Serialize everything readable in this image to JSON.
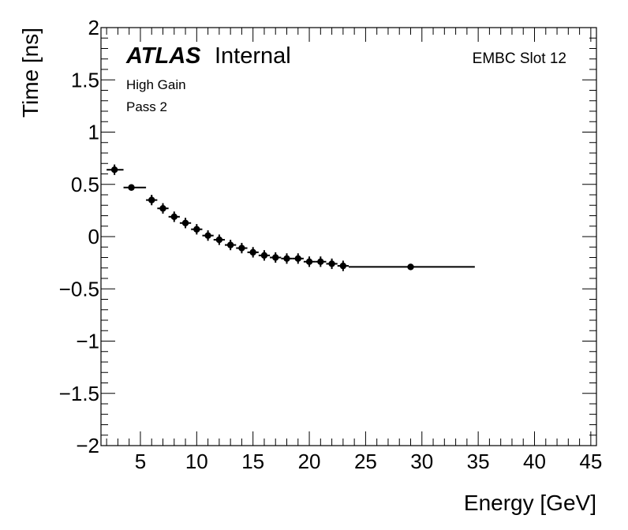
{
  "chart_data": {
    "type": "scatter",
    "xlabel": "Energy [GeV]",
    "ylabel": "Time [ns]",
    "xlim": [
      1.5,
      45.5
    ],
    "ylim": [
      -2,
      2
    ],
    "x_major_ticks": [
      5,
      10,
      15,
      20,
      25,
      30,
      35,
      40,
      45
    ],
    "x_tick_labels": [
      "5",
      "10",
      "15",
      "20",
      "25",
      "30",
      "35",
      "40",
      "45"
    ],
    "y_major_ticks": [
      -2,
      -1.5,
      -1,
      -0.5,
      0,
      0.5,
      1,
      1.5,
      2
    ],
    "y_tick_labels": [
      "−2",
      "−1.5",
      "−1",
      "−0.5",
      "0",
      "0.5",
      "1",
      "1.5",
      "2"
    ],
    "series": [
      {
        "name": "EMBC Slot 12",
        "points": [
          {
            "x": 2.7,
            "y": 0.64,
            "xlo": 2.0,
            "xhi": 3.5,
            "yerr": 0.05
          },
          {
            "x": 4.2,
            "y": 0.47,
            "xlo": 3.5,
            "xhi": 5.5,
            "yerr": 0.03
          },
          {
            "x": 6.0,
            "y": 0.35,
            "xlo": 5.5,
            "xhi": 6.5,
            "yerr": 0.05
          },
          {
            "x": 7.0,
            "y": 0.27,
            "xlo": 6.5,
            "xhi": 7.5,
            "yerr": 0.05
          },
          {
            "x": 8.0,
            "y": 0.19,
            "xlo": 7.5,
            "xhi": 8.5,
            "yerr": 0.05
          },
          {
            "x": 9.0,
            "y": 0.13,
            "xlo": 8.5,
            "xhi": 9.5,
            "yerr": 0.05
          },
          {
            "x": 10.0,
            "y": 0.07,
            "xlo": 9.5,
            "xhi": 10.5,
            "yerr": 0.05
          },
          {
            "x": 11.0,
            "y": 0.01,
            "xlo": 10.5,
            "xhi": 11.5,
            "yerr": 0.05
          },
          {
            "x": 12.0,
            "y": -0.03,
            "xlo": 11.5,
            "xhi": 12.5,
            "yerr": 0.05
          },
          {
            "x": 13.0,
            "y": -0.08,
            "xlo": 12.5,
            "xhi": 13.5,
            "yerr": 0.05
          },
          {
            "x": 14.0,
            "y": -0.11,
            "xlo": 13.5,
            "xhi": 14.5,
            "yerr": 0.05
          },
          {
            "x": 15.0,
            "y": -0.15,
            "xlo": 14.5,
            "xhi": 15.5,
            "yerr": 0.05
          },
          {
            "x": 16.0,
            "y": -0.18,
            "xlo": 15.5,
            "xhi": 16.5,
            "yerr": 0.05
          },
          {
            "x": 17.0,
            "y": -0.2,
            "xlo": 16.5,
            "xhi": 17.5,
            "yerr": 0.05
          },
          {
            "x": 18.0,
            "y": -0.21,
            "xlo": 17.5,
            "xhi": 18.5,
            "yerr": 0.05
          },
          {
            "x": 19.0,
            "y": -0.21,
            "xlo": 18.5,
            "xhi": 19.5,
            "yerr": 0.05
          },
          {
            "x": 20.0,
            "y": -0.24,
            "xlo": 19.5,
            "xhi": 20.5,
            "yerr": 0.05
          },
          {
            "x": 21.0,
            "y": -0.24,
            "xlo": 20.5,
            "xhi": 21.5,
            "yerr": 0.05
          },
          {
            "x": 22.0,
            "y": -0.26,
            "xlo": 21.5,
            "xhi": 22.5,
            "yerr": 0.05
          },
          {
            "x": 23.0,
            "y": -0.28,
            "xlo": 22.5,
            "xhi": 23.5,
            "yerr": 0.05
          },
          {
            "x": 29.0,
            "y": -0.29,
            "xlo": 23.5,
            "xhi": 34.7,
            "yerr": 0.02
          }
        ]
      }
    ],
    "annotations": {
      "atlas": "ATLAS",
      "internal": "Internal",
      "gain": "High Gain",
      "pass": "Pass 2",
      "channel": "EMBC Slot 12"
    },
    "grid": false
  }
}
